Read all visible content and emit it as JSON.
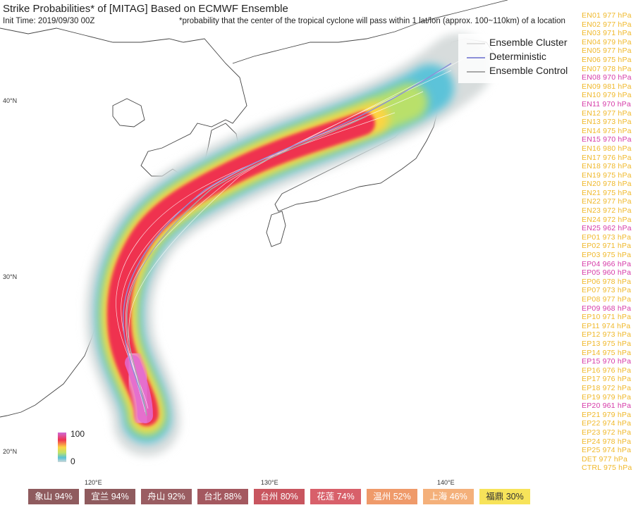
{
  "header": {
    "title": "Strike Probabilities* of [MITAG] Based on ECMWF Ensemble",
    "init_time": "Init Time: 2019/09/30 00Z",
    "footnote": "*probability that the center of the tropical cyclone will pass within 1 lat/lon (approx. 100~110km) of a location"
  },
  "legend": {
    "items": [
      {
        "label": "Ensemble Cluster",
        "color": "#e0e0e0"
      },
      {
        "label": "Deterministic",
        "color": "#8c8fd8"
      },
      {
        "label": "Ensemble Control",
        "color": "#a8a8a8"
      }
    ]
  },
  "members": [
    {
      "text": "EN01 977 hPa",
      "highlight": false
    },
    {
      "text": "EN02 977 hPa",
      "highlight": false
    },
    {
      "text": "EN03 971 hPa",
      "highlight": false
    },
    {
      "text": "EN04 979 hPa",
      "highlight": false
    },
    {
      "text": "EN05 977 hPa",
      "highlight": false
    },
    {
      "text": "EN06 975 hPa",
      "highlight": false
    },
    {
      "text": "EN07 978 hPa",
      "highlight": false
    },
    {
      "text": "EN08 970 hPa",
      "highlight": true
    },
    {
      "text": "EN09 981 hPa",
      "highlight": false
    },
    {
      "text": "EN10 979 hPa",
      "highlight": false
    },
    {
      "text": "EN11 970 hPa",
      "highlight": true
    },
    {
      "text": "EN12 977 hPa",
      "highlight": false
    },
    {
      "text": "EN13 973 hPa",
      "highlight": false
    },
    {
      "text": "EN14 975 hPa",
      "highlight": false
    },
    {
      "text": "EN15 970 hPa",
      "highlight": true
    },
    {
      "text": "EN16 980 hPa",
      "highlight": false
    },
    {
      "text": "EN17 976 hPa",
      "highlight": false
    },
    {
      "text": "EN18 978 hPa",
      "highlight": false
    },
    {
      "text": "EN19 975 hPa",
      "highlight": false
    },
    {
      "text": "EN20 978 hPa",
      "highlight": false
    },
    {
      "text": "EN21 975 hPa",
      "highlight": false
    },
    {
      "text": "EN22 977 hPa",
      "highlight": false
    },
    {
      "text": "EN23 972 hPa",
      "highlight": false
    },
    {
      "text": "EN24 972 hPa",
      "highlight": false
    },
    {
      "text": "EN25 962 hPa",
      "highlight": true
    },
    {
      "text": "EP01 973 hPa",
      "highlight": false
    },
    {
      "text": "EP02 971 hPa",
      "highlight": false
    },
    {
      "text": "EP03 975 hPa",
      "highlight": false
    },
    {
      "text": "EP04 966 hPa",
      "highlight": true
    },
    {
      "text": "EP05 960 hPa",
      "highlight": true
    },
    {
      "text": "EP06 978 hPa",
      "highlight": false
    },
    {
      "text": "EP07 973 hPa",
      "highlight": false
    },
    {
      "text": "EP08 977 hPa",
      "highlight": false
    },
    {
      "text": "EP09 968 hPa",
      "highlight": true
    },
    {
      "text": "EP10 971 hPa",
      "highlight": false
    },
    {
      "text": "EP11 974 hPa",
      "highlight": false
    },
    {
      "text": "EP12 973 hPa",
      "highlight": false
    },
    {
      "text": "EP13 975 hPa",
      "highlight": false
    },
    {
      "text": "EP14 975 hPa",
      "highlight": false
    },
    {
      "text": "EP15 970 hPa",
      "highlight": true
    },
    {
      "text": "EP16 976 hPa",
      "highlight": false
    },
    {
      "text": "EP17 976 hPa",
      "highlight": false
    },
    {
      "text": "EP18 972 hPa",
      "highlight": false
    },
    {
      "text": "EP19 979 hPa",
      "highlight": false
    },
    {
      "text": "EP20 961 hPa",
      "highlight": true
    },
    {
      "text": "EP21 979 hPa",
      "highlight": false
    },
    {
      "text": "EP22 974 hPa",
      "highlight": false
    },
    {
      "text": "EP23 972 hPa",
      "highlight": false
    },
    {
      "text": "EP24 978 hPa",
      "highlight": false
    },
    {
      "text": "EP25 974 hPa",
      "highlight": false
    },
    {
      "text": "DET 977 hPa",
      "highlight": false
    },
    {
      "text": "CTRL 975 hPa",
      "highlight": false
    }
  ],
  "colors": {
    "member_normal": "#f0b829",
    "member_highlight": "#d63aa8"
  },
  "axes": {
    "lat_labels": [
      "40°N",
      "30°N",
      "20°N"
    ],
    "lon_labels": [
      "120°E",
      "130°E",
      "140°E"
    ]
  },
  "scale": {
    "max_label": "100",
    "min_label": "0"
  },
  "cities": [
    {
      "label": "象山 94%",
      "color": "#8f5b5e"
    },
    {
      "label": "宜兰 94%",
      "color": "#8f5b5e"
    },
    {
      "label": "舟山 92%",
      "color": "#9a5d62"
    },
    {
      "label": "台北 88%",
      "color": "#a4585f"
    },
    {
      "label": "台州 80%",
      "color": "#c8555f"
    },
    {
      "label": "花莲 74%",
      "color": "#d8606a"
    },
    {
      "label": "温州 52%",
      "color": "#ef9a6a"
    },
    {
      "label": "上海 46%",
      "color": "#f4b07a"
    },
    {
      "label": "福鼎 30%",
      "color": "#f7e35a"
    }
  ]
}
